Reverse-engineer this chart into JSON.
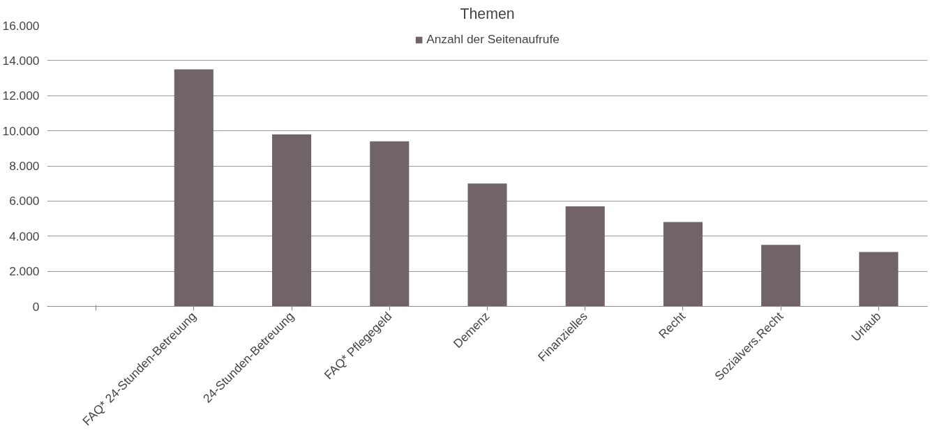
{
  "chart_data": {
    "type": "bar",
    "title": "Themen",
    "categories": [
      null,
      "FAQ* 24-Stunden-Betreuung",
      "24-Stunden-Betreuung",
      "FAQ* Pflegegeld",
      "Demenz",
      "Finanzielles",
      "Recht",
      "Sozialvers.Recht",
      "Urlaub"
    ],
    "series": [
      {
        "name": "Anzahl der Seitenaufrufe",
        "color": "#706468",
        "values": [
          null,
          13500,
          9800,
          9400,
          7000,
          5700,
          4800,
          3500,
          3100
        ]
      }
    ],
    "ylim": [
      0,
      16000
    ],
    "yticks": [
      {
        "value": 0,
        "label": "0"
      },
      {
        "value": 2000,
        "label": "2.000"
      },
      {
        "value": 4000,
        "label": "4.000"
      },
      {
        "value": 6000,
        "label": "6.000"
      },
      {
        "value": 8000,
        "label": "8.000"
      },
      {
        "value": 10000,
        "label": "10.000"
      },
      {
        "value": 12000,
        "label": "12.000"
      },
      {
        "value": 14000,
        "label": "14.000"
      },
      {
        "value": 16000,
        "label": "16.000"
      }
    ],
    "grid": "y",
    "legend": "top"
  }
}
